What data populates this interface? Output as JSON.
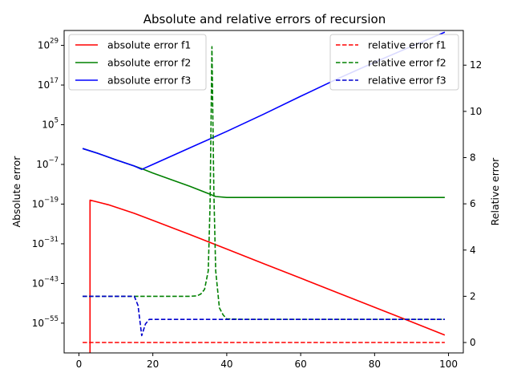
{
  "chart_data": {
    "type": "line",
    "title": "Absolute and relative errors of recursion",
    "xlabel": "",
    "ylabel_left": "Absolute error",
    "ylabel_right": "Relative error",
    "xlim": [
      -4,
      104
    ],
    "x_ticks": [
      0,
      20,
      40,
      60,
      80,
      100
    ],
    "left_axis": {
      "scale": "log",
      "log10_range": [
        -64,
        33.5
      ],
      "tick_exponents": [
        -55,
        -43,
        -31,
        -19,
        -7,
        5,
        17,
        29
      ]
    },
    "right_axis": {
      "scale": "linear",
      "ylim": [
        -0.45,
        13.5
      ],
      "ticks": [
        0,
        2,
        4,
        6,
        8,
        10,
        12
      ]
    },
    "legend_left": {
      "placement": "upper-left",
      "entries": [
        "absolute error f1",
        "absolute error f2",
        "absolute error f3"
      ]
    },
    "legend_right": {
      "placement": "upper-right",
      "entries": [
        "relative error f1",
        "relative error f2",
        "relative error f3"
      ]
    },
    "series": [
      {
        "name": "absolute error f1",
        "axis": "left",
        "color": "#ff0000",
        "dash": "solid",
        "x": [
          3,
          3,
          8,
          15,
          20,
          30,
          40,
          50,
          60,
          70,
          80,
          90,
          99
        ],
        "log10_y": [
          -70,
          -17.8,
          -19.2,
          -21.8,
          -23.9,
          -28.2,
          -32.6,
          -37.0,
          -41.4,
          -45.8,
          -50.2,
          -54.6,
          -58.6
        ]
      },
      {
        "name": "absolute error f2",
        "axis": "left",
        "color": "#008000",
        "dash": "solid",
        "x": [
          1,
          5,
          10,
          15,
          17,
          20,
          25,
          30,
          35,
          37,
          40,
          50,
          60,
          70,
          80,
          90,
          99
        ],
        "log10_y": [
          -2.2,
          -3.6,
          -5.6,
          -7.5,
          -8.3,
          -9.6,
          -11.6,
          -13.6,
          -15.8,
          -16.7,
          -17.0,
          -17.0,
          -17.0,
          -17.0,
          -17.0,
          -17.0,
          -17.0
        ]
      },
      {
        "name": "absolute error f3",
        "axis": "left",
        "color": "#0000ff",
        "dash": "solid",
        "x": [
          1,
          5,
          10,
          15,
          17,
          20,
          30,
          40,
          50,
          60,
          70,
          80,
          90,
          99
        ],
        "log10_y": [
          -2.2,
          -3.6,
          -5.6,
          -7.5,
          -8.5,
          -7.0,
          -2.0,
          3.0,
          8.2,
          13.6,
          18.9,
          23.9,
          28.7,
          33.0
        ]
      },
      {
        "name": "relative error f1",
        "axis": "right",
        "color": "#ff0000",
        "dash": "dashed",
        "x": [
          1,
          20,
          40,
          60,
          80,
          99
        ],
        "y": [
          0,
          0,
          0,
          0,
          0,
          0
        ]
      },
      {
        "name": "relative error f2",
        "axis": "right",
        "color": "#008000",
        "dash": "dashed",
        "x": [
          1,
          5,
          10,
          15,
          20,
          25,
          30,
          32,
          33,
          34,
          35,
          35.5,
          36,
          36.5,
          37,
          38,
          39,
          40,
          45,
          50,
          60,
          70,
          80,
          90,
          99
        ],
        "y": [
          2,
          2,
          2,
          2,
          2,
          2,
          2,
          2.02,
          2.1,
          2.3,
          3.1,
          6.0,
          12.8,
          6.5,
          3.1,
          1.5,
          1.2,
          1.02,
          1,
          1,
          1,
          1,
          1,
          1,
          1
        ]
      },
      {
        "name": "relative error f3",
        "axis": "right",
        "color": "#0000cd",
        "dash": "dashed",
        "x": [
          1,
          5,
          10,
          15,
          16,
          17,
          18,
          19,
          20,
          30,
          40,
          50,
          60,
          70,
          80,
          90,
          99
        ],
        "y": [
          2,
          2,
          2,
          2,
          1.6,
          0.3,
          0.8,
          1.0,
          1,
          1,
          1,
          1,
          1,
          1,
          1,
          1,
          1
        ]
      }
    ]
  }
}
